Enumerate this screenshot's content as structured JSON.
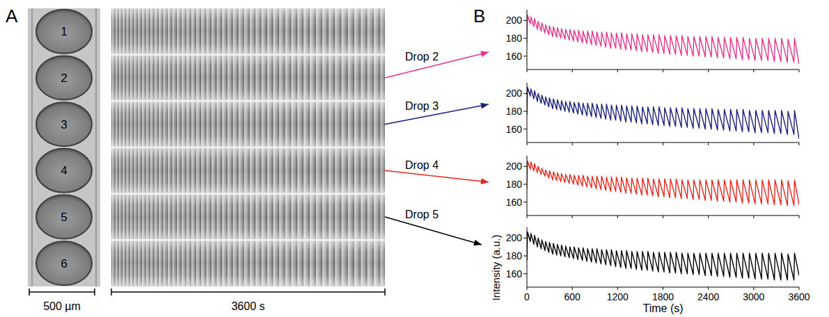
{
  "panel_labels": [
    "A",
    "B"
  ],
  "image": {
    "drop_labels": [
      "1",
      "2",
      "3",
      "4",
      "5",
      "6"
    ],
    "scale_bar_image": "500 µm",
    "scale_bar_kymograph": "3600 s"
  },
  "chart_data": {
    "type": "line",
    "xlabel": "Time (s)",
    "ylabel": "Intensity (a.u.)",
    "xlim": [
      0,
      3600
    ],
    "xticks": [
      0,
      600,
      1200,
      1800,
      2400,
      3000,
      3600
    ],
    "ylim": [
      145,
      212
    ],
    "yticks": [
      160,
      180,
      200
    ],
    "x": [
      0,
      8,
      45,
      53,
      92,
      100,
      140,
      148,
      189,
      197,
      239,
      247,
      290,
      298,
      342,
      350,
      395,
      403,
      449,
      457,
      504,
      512,
      560,
      568,
      617,
      625,
      675,
      683,
      734,
      742,
      794,
      802,
      855,
      863,
      917,
      925,
      980,
      988,
      1044,
      1052,
      1109,
      1117,
      1175,
      1183,
      1242,
      1250,
      1310,
      1318,
      1379,
      1387,
      1449,
      1457,
      1520,
      1528,
      1592,
      1600,
      1665,
      1673,
      1739,
      1747,
      1814,
      1822,
      1890,
      1898,
      1966,
      1974,
      2043,
      2051,
      2121,
      2129,
      2200,
      2208,
      2279,
      2287,
      2359,
      2367,
      2440,
      2448,
      2521,
      2529,
      2603,
      2611,
      2685,
      2693,
      2768,
      2776,
      2851,
      2859,
      2935,
      2943,
      3019,
      3027,
      3104,
      3112,
      3189,
      3197,
      3274,
      3282,
      3360,
      3368,
      3446,
      3454,
      3532,
      3540,
      3600
    ],
    "series": [
      {
        "name": "Drop 2",
        "color": "#e6338c",
        "values": [
          175,
          206,
          196,
          204,
          193,
          202,
          190,
          199,
          188,
          197,
          186,
          195,
          184,
          194,
          182,
          193,
          181,
          192,
          180,
          191,
          179,
          190,
          178,
          190,
          177,
          189,
          176,
          189,
          175,
          188,
          174,
          188,
          173,
          188,
          172,
          187,
          171,
          187,
          170,
          187,
          169,
          186,
          169,
          186,
          168,
          186,
          167,
          185,
          167,
          185,
          166,
          185,
          165,
          184,
          165,
          184,
          164,
          184,
          163,
          184,
          163,
          183,
          162,
          183,
          162,
          183,
          161,
          183,
          161,
          182,
          160,
          182,
          160,
          182,
          159,
          182,
          159,
          182,
          158,
          181,
          158,
          181,
          157,
          181,
          157,
          181,
          156,
          181,
          156,
          180,
          155,
          180,
          155,
          180,
          155,
          180,
          154,
          180,
          154,
          180,
          153,
          179,
          153,
          180,
          151
        ]
      },
      {
        "name": "Drop 3",
        "color": "#1b1f7a",
        "values": [
          176,
          207,
          197,
          205,
          194,
          203,
          191,
          200,
          189,
          198,
          187,
          196,
          185,
          195,
          183,
          194,
          182,
          193,
          181,
          192,
          180,
          191,
          179,
          191,
          178,
          190,
          177,
          190,
          176,
          189,
          175,
          189,
          174,
          189,
          173,
          188,
          172,
          188,
          171,
          188,
          170,
          187,
          170,
          187,
          169,
          187,
          168,
          186,
          168,
          186,
          167,
          186,
          166,
          185,
          166,
          185,
          165,
          185,
          164,
          185,
          164,
          184,
          163,
          184,
          163,
          184,
          162,
          184,
          162,
          183,
          161,
          183,
          161,
          183,
          160,
          183,
          160,
          183,
          159,
          182,
          159,
          182,
          158,
          182,
          158,
          182,
          157,
          182,
          157,
          181,
          156,
          181,
          156,
          181,
          156,
          181,
          155,
          181,
          155,
          181,
          154,
          180,
          154,
          181,
          149
        ]
      },
      {
        "name": "Drop 4",
        "color": "#e8261c",
        "values": [
          174,
          206,
          197,
          205,
          195,
          203,
          193,
          200,
          191,
          198,
          189,
          196,
          187,
          195,
          185,
          194,
          184,
          193,
          183,
          192,
          182,
          191,
          181,
          191,
          180,
          190,
          179,
          190,
          178,
          190,
          177,
          189,
          176,
          189,
          175,
          189,
          174,
          189,
          173,
          188,
          172,
          188,
          172,
          188,
          171,
          188,
          170,
          187,
          170,
          187,
          169,
          187,
          168,
          187,
          168,
          187,
          167,
          186,
          166,
          186,
          166,
          186,
          165,
          186,
          165,
          186,
          164,
          185,
          164,
          185,
          163,
          185,
          163,
          185,
          162,
          185,
          162,
          185,
          161,
          185,
          161,
          185,
          160,
          185,
          160,
          185,
          159,
          185,
          159,
          185,
          158,
          185,
          158,
          185,
          158,
          185,
          157,
          185,
          157,
          185,
          156,
          184,
          156,
          185,
          157
        ]
      },
      {
        "name": "Drop 5",
        "color": "#000000",
        "values": [
          175,
          207,
          196,
          205,
          193,
          203,
          190,
          200,
          188,
          198,
          186,
          196,
          184,
          195,
          182,
          194,
          181,
          193,
          180,
          192,
          179,
          191,
          178,
          190,
          177,
          190,
          176,
          189,
          175,
          189,
          174,
          188,
          173,
          188,
          172,
          188,
          171,
          187,
          170,
          187,
          169,
          187,
          168,
          186,
          167,
          186,
          166,
          186,
          166,
          185,
          165,
          185,
          164,
          185,
          164,
          185,
          163,
          184,
          162,
          184,
          162,
          184,
          161,
          184,
          161,
          184,
          160,
          183,
          160,
          183,
          159,
          183,
          159,
          183,
          158,
          183,
          158,
          183,
          157,
          183,
          157,
          183,
          156,
          183,
          156,
          183,
          155,
          183,
          155,
          183,
          154,
          183,
          154,
          183,
          154,
          183,
          153,
          183,
          153,
          183,
          153,
          182,
          153,
          183,
          158
        ]
      }
    ]
  }
}
